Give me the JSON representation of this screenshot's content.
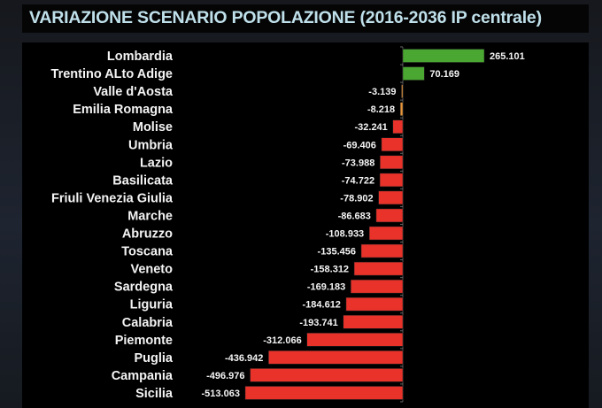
{
  "chart_data": {
    "type": "bar",
    "orientation": "horizontal",
    "title": "VARIAZIONE SCENARIO POPOLAZIONE (2016-2036 IP centrale)",
    "xlabel": "",
    "ylabel": "",
    "grid": false,
    "legend": "none",
    "categories": [
      "Lombardia",
      "Trentino ALto Adige",
      "Valle d'Aosta",
      "Emilia Romagna",
      "Molise",
      "Umbria",
      "Lazio",
      "Basilicata",
      "Friuli Venezia Giulia",
      "Marche",
      "Abruzzo",
      "Toscana",
      "Veneto",
      "Sardegna",
      "Liguria",
      "Calabria",
      "Piemonte",
      "Puglia",
      "Campania",
      "Sicilia"
    ],
    "values": [
      265.101,
      70.169,
      -3.139,
      -8.218,
      -32.241,
      -69.406,
      -73.988,
      -74.722,
      -78.902,
      -86.683,
      -108.933,
      -135.456,
      -158.312,
      -169.183,
      -184.612,
      -193.741,
      -312.066,
      -436.942,
      -496.976,
      -513.063
    ],
    "labels": [
      "265.101",
      "70.169",
      "-3.139",
      "-8.218",
      "-32.241",
      "-69.406",
      "-73.988",
      "-74.722",
      "-78.902",
      "-86.683",
      "-108.933",
      "-135.456",
      "-158.312",
      "-169.183",
      "-184.612",
      "-193.741",
      "-312.066",
      "-436.942",
      "-496.976",
      "-513.063"
    ],
    "colors": [
      "#4aa832",
      "#4aa832",
      "#e8963a",
      "#e8963a",
      "#e8322a",
      "#e8322a",
      "#e8322a",
      "#e8322a",
      "#e8322a",
      "#e8322a",
      "#e8322a",
      "#e8322a",
      "#e8322a",
      "#e8322a",
      "#e8322a",
      "#e8322a",
      "#e8322a",
      "#e8322a",
      "#e8322a",
      "#e8322a"
    ],
    "xlim": [
      -520,
      300
    ]
  }
}
